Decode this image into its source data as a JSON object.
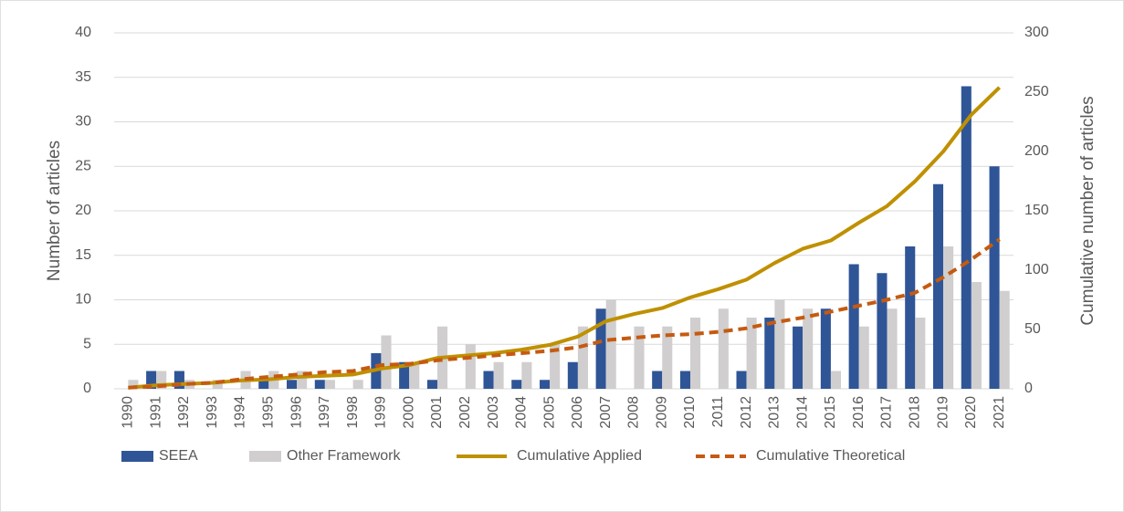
{
  "chart_data": {
    "type": "bar",
    "y_label": "Number of articles",
    "y2_label": "Cumulative number of articles",
    "categories": [
      "1990",
      "1991",
      "1992",
      "1993",
      "1994",
      "1995",
      "1996",
      "1997",
      "1998",
      "1999",
      "2000",
      "2001",
      "2002",
      "2003",
      "2004",
      "2005",
      "2006",
      "2007",
      "2008",
      "2009",
      "2010",
      "2011",
      "2012",
      "2013",
      "2014",
      "2015",
      "2016",
      "2017",
      "2018",
      "2019",
      "2020",
      "2021"
    ],
    "series": [
      {
        "name": "SEEA",
        "type": "bar",
        "color": "#2f5597",
        "values": [
          0,
          2,
          2,
          0,
          0,
          1,
          1,
          1,
          0,
          4,
          3,
          1,
          0,
          2,
          1,
          1,
          3,
          9,
          0,
          2,
          2,
          0,
          2,
          8,
          7,
          9,
          14,
          13,
          16,
          23,
          34,
          25
        ]
      },
      {
        "name": "Other Framework",
        "type": "bar",
        "color": "#d0cece",
        "values": [
          1,
          2,
          1,
          1,
          2,
          2,
          2,
          1,
          1,
          6,
          3,
          7,
          5,
          3,
          3,
          5,
          7,
          10,
          7,
          7,
          8,
          9,
          8,
          10,
          9,
          2,
          7,
          9,
          8,
          16,
          12,
          11
        ]
      },
      {
        "name": "Cumulative Applied",
        "type": "line",
        "axis": "y2",
        "color": "#bf9000",
        "dashed": false,
        "values": [
          1,
          3,
          4,
          5,
          7,
          8,
          10,
          11,
          12,
          17,
          20,
          26,
          28,
          30,
          33,
          37,
          44,
          57,
          63,
          68,
          77,
          84,
          92,
          106,
          118,
          125,
          140,
          154,
          175,
          200,
          231,
          254
        ]
      },
      {
        "name": "Cumulative Theoretical",
        "type": "line",
        "axis": "y2",
        "color": "#c55a11",
        "dashed": true,
        "values": [
          1,
          2,
          4,
          5,
          8,
          10,
          12,
          14,
          15,
          20,
          21,
          24,
          26,
          28,
          30,
          32,
          35,
          41,
          43,
          45,
          46,
          48,
          51,
          56,
          60,
          65,
          70,
          75,
          81,
          94,
          109,
          126
        ]
      }
    ],
    "ylim": [
      0,
      40
    ],
    "yticks": [
      0,
      5,
      10,
      15,
      20,
      25,
      30,
      35,
      40
    ],
    "y2lim": [
      0,
      300
    ],
    "y2ticks": [
      0,
      50,
      100,
      150,
      200,
      250,
      300
    ],
    "grid": true,
    "legend": "bottom"
  }
}
